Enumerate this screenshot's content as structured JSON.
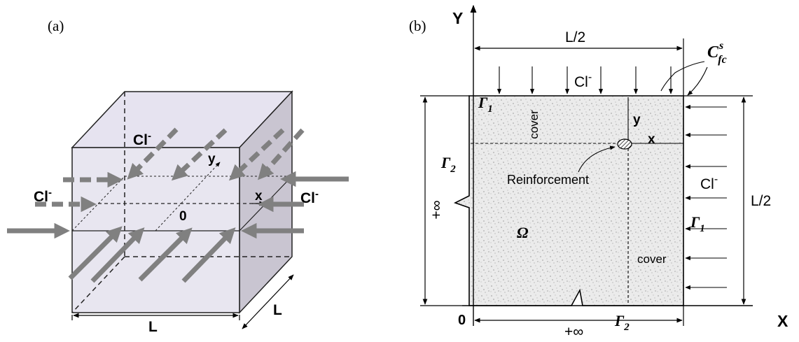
{
  "panel_a": {
    "tag": "(a)",
    "cl_top": "Cl",
    "cl_top_sup": "-",
    "cl_left": "Cl",
    "cl_left_sup": "-",
    "cl_right": "Cl",
    "cl_right_sup": "-",
    "axis_y": "y",
    "axis_x": "x",
    "origin": "0",
    "dim_front": "L",
    "dim_side": "L"
  },
  "panel_b": {
    "tag": "(b)",
    "axis_Y": "Y",
    "axis_X": "X",
    "origin": "0",
    "dim_top": "L/2",
    "dim_right": "L/2",
    "dim_left": "+∞",
    "dim_bottom": "+∞",
    "gamma1_top": "Γ",
    "gamma1_top_sub": "1",
    "gamma1_right": "Γ",
    "gamma1_right_sub": "1",
    "gamma2_left": "Γ",
    "gamma2_left_sub": "2",
    "gamma2_bottom": "Γ",
    "gamma2_bottom_sub": "2",
    "omega": "Ω",
    "cl_top": "Cl",
    "cl_top_sup": "-",
    "cl_right": "Cl",
    "cl_right_sup": "-",
    "cover_top": "cover",
    "cover_right": "cover",
    "local_y": "y",
    "local_x": "x",
    "reinforcement": "Reinforcement",
    "cfc": "C",
    "cfc_sup": "s",
    "cfc_sub": "fc"
  },
  "colors": {
    "cube_front": "#e8e6f0",
    "cube_top": "#e6e3f0",
    "cube_side": "#c9c5d1",
    "arrow_gray": "#808080",
    "concrete": "#e9e9e9"
  }
}
